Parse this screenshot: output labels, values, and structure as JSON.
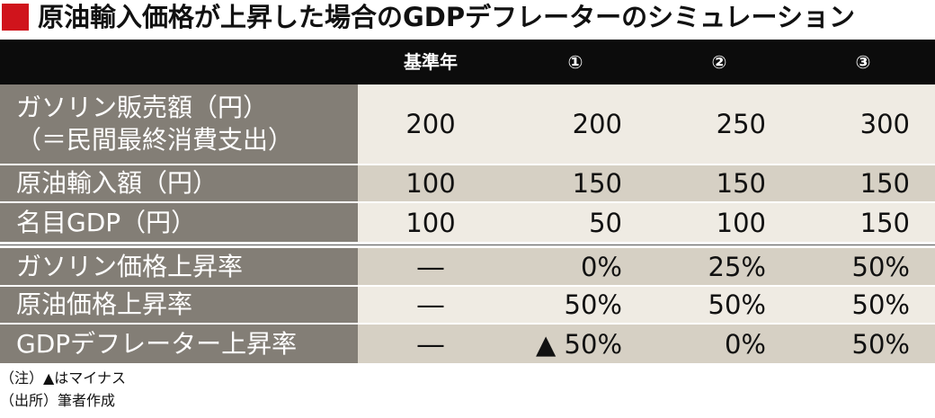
{
  "title": "原油輸入価格が上昇した場合のGDPデフレーターのシミュレーション",
  "colors": {
    "accent": "#d0141c",
    "header_bg": "#0c0c0c",
    "label_bg": "#837e76"
  },
  "table": {
    "headers": [
      "",
      "基準年",
      "①",
      "②",
      "③"
    ],
    "rows": [
      {
        "label_line1": "ガソリン販売額（円）",
        "label_line2": "（＝民間最終消費支出）",
        "values": [
          "200",
          "200",
          "250",
          "300"
        ]
      },
      {
        "label_line1": "原油輸入額（円）",
        "values": [
          "100",
          "150",
          "150",
          "150"
        ]
      },
      {
        "label_line1": "名目GDP（円）",
        "values": [
          "100",
          "50",
          "100",
          "150"
        ]
      },
      {
        "label_line1": "ガソリン価格上昇率",
        "values": [
          "―",
          "0%",
          "25%",
          "50%"
        ]
      },
      {
        "label_line1": "原油価格上昇率",
        "values": [
          "―",
          "50%",
          "50%",
          "50%"
        ]
      },
      {
        "label_line1": "GDPデフレーター上昇率",
        "values": [
          "―",
          "▲ 50%",
          "0%",
          "50%"
        ]
      }
    ]
  },
  "notes": [
    "（注）▲はマイナス",
    "（出所）筆者作成"
  ]
}
